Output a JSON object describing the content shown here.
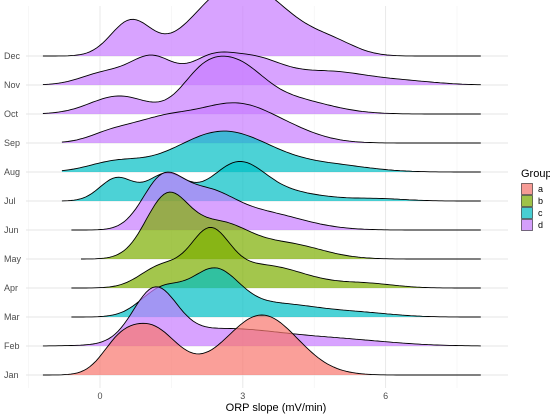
{
  "chart_data": {
    "type": "ridgeline",
    "xlabel": "ORP slope (mV/min)",
    "ylabel": "",
    "xlim": [
      -1.3,
      8.0
    ],
    "x_ticks": [
      0,
      3,
      6
    ],
    "x_tick_labels": [
      "0",
      "3",
      "6"
    ],
    "x_minor_ticks": [
      -1.5,
      1.5,
      4.5,
      7.5
    ],
    "grid": true,
    "fill_opacity": 0.7,
    "legend": {
      "title": "Group",
      "position": "right",
      "entries": [
        {
          "label": "a",
          "color": "#f8766d"
        },
        {
          "label": "b",
          "color": "#7cae00"
        },
        {
          "label": "c",
          "color": "#00bfc4"
        },
        {
          "label": "d",
          "color": "#c77cff"
        }
      ]
    },
    "ridges": [
      {
        "category": "Jan",
        "group": "a",
        "x_range": [
          -1.2,
          8.0
        ],
        "components": [
          [
            0.8,
            1.05,
            0.55
          ],
          [
            1.0,
            3.4,
            0.75
          ],
          [
            0.3,
            0.35,
            0.35
          ]
        ]
      },
      {
        "category": "Feb",
        "group": "d",
        "x_range": [
          -1.2,
          8.0
        ],
        "components": [
          [
            0.85,
            1.15,
            0.45
          ],
          [
            0.28,
            2.6,
            1.2
          ],
          [
            0.1,
            5.0,
            1.1
          ]
        ]
      },
      {
        "category": "Mar",
        "group": "c",
        "x_range": [
          -0.6,
          8.0
        ],
        "components": [
          [
            0.45,
            1.3,
            0.45
          ],
          [
            0.72,
            2.4,
            0.5
          ],
          [
            0.22,
            3.7,
            0.9
          ],
          [
            0.06,
            5.5,
            0.7
          ]
        ]
      },
      {
        "category": "Apr",
        "group": "b",
        "x_range": [
          -0.6,
          8.0
        ],
        "components": [
          [
            0.35,
            1.3,
            0.45
          ],
          [
            0.8,
            2.3,
            0.4
          ],
          [
            0.38,
            3.4,
            0.9
          ],
          [
            0.07,
            5.6,
            0.6
          ]
        ]
      },
      {
        "category": "May",
        "group": "b",
        "x_range": [
          -0.4,
          8.0
        ],
        "components": [
          [
            1.0,
            1.4,
            0.45
          ],
          [
            0.55,
            2.5,
            0.6
          ],
          [
            0.25,
            3.9,
            0.75
          ]
        ]
      },
      {
        "category": "Jun",
        "group": "d",
        "x_range": [
          -0.6,
          8.0
        ],
        "components": [
          [
            0.78,
            1.3,
            0.42
          ],
          [
            0.5,
            2.2,
            0.55
          ],
          [
            0.3,
            3.3,
            0.9
          ]
        ]
      },
      {
        "category": "Jul",
        "group": "c",
        "x_range": [
          -0.8,
          8.0
        ],
        "components": [
          [
            0.38,
            0.35,
            0.35
          ],
          [
            0.45,
            1.4,
            0.4
          ],
          [
            0.62,
            2.9,
            0.55
          ],
          [
            0.13,
            4.0,
            0.7
          ],
          [
            0.04,
            5.8,
            0.6
          ]
        ]
      },
      {
        "category": "Aug",
        "group": "c",
        "x_range": [
          -0.8,
          8.0
        ],
        "components": [
          [
            0.15,
            0.3,
            0.55
          ],
          [
            0.68,
            2.6,
            1.0
          ],
          [
            0.1,
            4.9,
            0.8
          ]
        ]
      },
      {
        "category": "Sep",
        "group": "d",
        "x_range": [
          -0.8,
          8.0
        ],
        "components": [
          [
            0.38,
            1.3,
            0.7
          ],
          [
            0.58,
            2.8,
            0.75
          ],
          [
            0.18,
            3.9,
            0.7
          ],
          [
            0.12,
            0.2,
            0.45
          ]
        ]
      },
      {
        "category": "Oct",
        "group": "d",
        "x_range": [
          -1.2,
          8.0
        ],
        "components": [
          [
            0.3,
            0.4,
            0.6
          ],
          [
            0.5,
            2.1,
            0.45
          ],
          [
            0.68,
            2.85,
            0.55
          ],
          [
            0.26,
            3.9,
            0.85
          ]
        ]
      },
      {
        "category": "Nov",
        "group": "d",
        "x_range": [
          -1.2,
          8.0
        ],
        "components": [
          [
            0.2,
            0.1,
            0.5
          ],
          [
            0.46,
            1.1,
            0.45
          ],
          [
            0.36,
            2.3,
            0.45
          ],
          [
            0.42,
            3.2,
            0.6
          ],
          [
            0.22,
            4.8,
            0.8
          ],
          [
            0.06,
            6.4,
            0.7
          ]
        ]
      },
      {
        "category": "Dec",
        "group": "d",
        "x_range": [
          -1.2,
          8.0
        ],
        "components": [
          [
            0.58,
            0.65,
            0.42
          ],
          [
            0.88,
            2.6,
            0.75
          ],
          [
            0.62,
            3.6,
            0.75
          ],
          [
            0.18,
            4.9,
            0.5
          ]
        ]
      }
    ]
  }
}
